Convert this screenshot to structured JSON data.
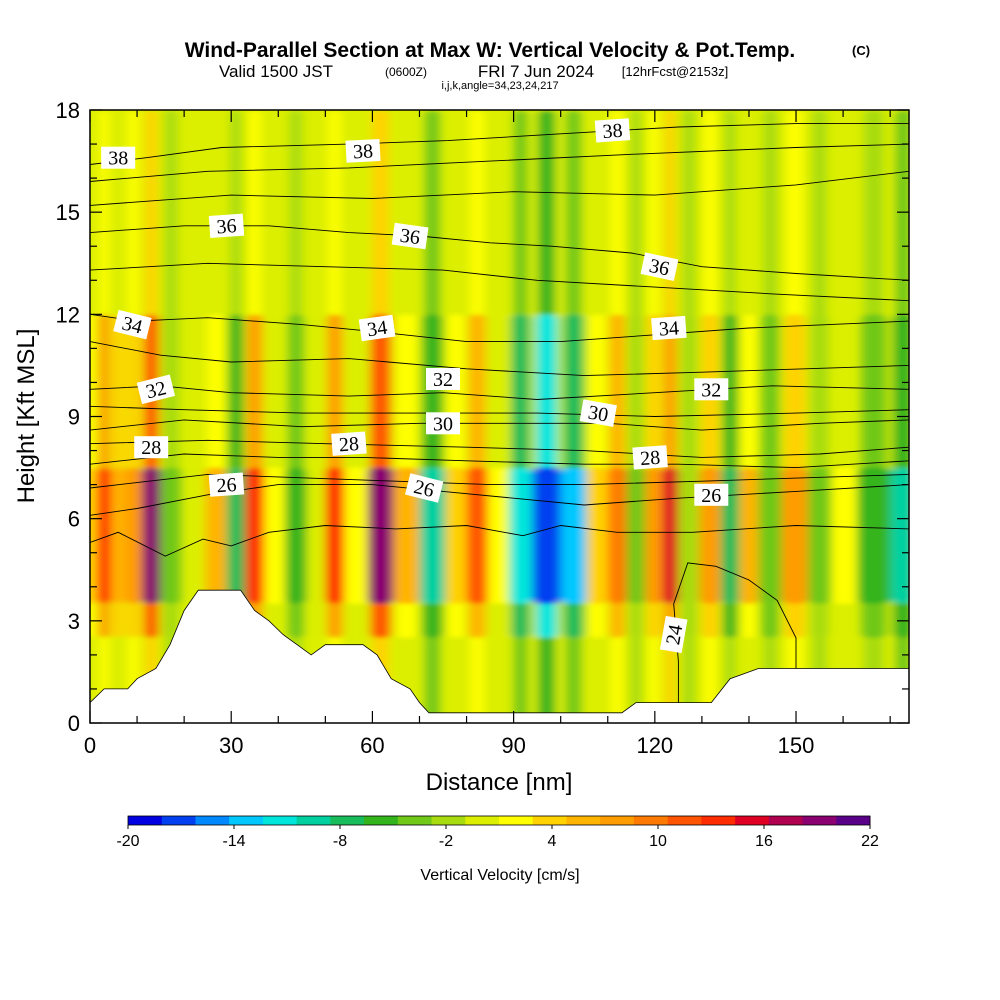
{
  "title": {
    "main": "Wind-Parallel Section at Max W: Vertical Velocity & Pot.Temp.",
    "main_mark": "(C)",
    "valid_lead": "Valid 1500 JST",
    "valid_utc": "(0600Z)",
    "valid_date": "FRI 7 Jun 2024",
    "fcst": "[12hrFcst@2153z]",
    "indices": "i,j,k,angle=34,23,24,217"
  },
  "chart_data": {
    "type": "heatmap",
    "xlabel": "Distance [nm]",
    "ylabel": "Height [Kft MSL]",
    "xlim": [
      0,
      174
    ],
    "ylim": [
      0,
      18
    ],
    "x_ticks": [
      0,
      30,
      60,
      90,
      120,
      150
    ],
    "y_ticks": [
      0,
      3,
      6,
      9,
      12,
      15,
      18
    ],
    "x_minor_step": 10,
    "y_minor_step": 1,
    "colorbar": {
      "label": "Vertical Velocity [cm/s]",
      "ticks": [
        -20,
        -14,
        -8,
        -2,
        4,
        10,
        16,
        22
      ],
      "levels": [
        -20,
        -18,
        -16,
        -14,
        -12,
        -10,
        -8,
        -6,
        -4,
        -2,
        0,
        2,
        4,
        6,
        8,
        10,
        12,
        14,
        16,
        18,
        20,
        22
      ],
      "colors": [
        "#0000e0",
        "#0040f0",
        "#0088ff",
        "#00c8ff",
        "#00e6dc",
        "#00d0a0",
        "#18bc5a",
        "#34b41c",
        "#70c818",
        "#a8dc10",
        "#dcef00",
        "#ffff00",
        "#ffd200",
        "#ffb400",
        "#ff9c00",
        "#ff7a00",
        "#ff5400",
        "#ff2c00",
        "#e00024",
        "#b00050",
        "#8a0070",
        "#5a0088"
      ]
    },
    "vertical_velocity_columns": [
      {
        "x": 0,
        "v": 5
      },
      {
        "x": 3,
        "v": 14
      },
      {
        "x": 6,
        "v": 7
      },
      {
        "x": 9,
        "v": 8
      },
      {
        "x": 13,
        "v": 20
      },
      {
        "x": 17,
        "v": -3
      },
      {
        "x": 22,
        "v": 0
      },
      {
        "x": 27,
        "v": 6
      },
      {
        "x": 31,
        "v": -8
      },
      {
        "x": 35,
        "v": 15
      },
      {
        "x": 39,
        "v": 3
      },
      {
        "x": 44,
        "v": -5
      },
      {
        "x": 48,
        "v": 0
      },
      {
        "x": 52,
        "v": 14
      },
      {
        "x": 56,
        "v": 3
      },
      {
        "x": 62,
        "v": 20
      },
      {
        "x": 67,
        "v": 6
      },
      {
        "x": 73,
        "v": -9
      },
      {
        "x": 78,
        "v": 5
      },
      {
        "x": 82,
        "v": 13
      },
      {
        "x": 87,
        "v": 2
      },
      {
        "x": 91,
        "v": -11
      },
      {
        "x": 97,
        "v": -18
      },
      {
        "x": 103,
        "v": -13
      },
      {
        "x": 108,
        "v": 4
      },
      {
        "x": 112,
        "v": 10
      },
      {
        "x": 116,
        "v": -3
      },
      {
        "x": 120,
        "v": 9
      },
      {
        "x": 123,
        "v": 16
      },
      {
        "x": 127,
        "v": -2
      },
      {
        "x": 132,
        "v": 9
      },
      {
        "x": 136,
        "v": -7
      },
      {
        "x": 140,
        "v": 6
      },
      {
        "x": 144,
        "v": -4
      },
      {
        "x": 150,
        "v": 8
      },
      {
        "x": 155,
        "v": -3
      },
      {
        "x": 160,
        "v": 2
      },
      {
        "x": 166,
        "v": -6
      },
      {
        "x": 174,
        "v": -10
      }
    ],
    "terrain": [
      {
        "x": 0,
        "y": 0.6
      },
      {
        "x": 3,
        "y": 1.0
      },
      {
        "x": 8,
        "y": 1.0
      },
      {
        "x": 10,
        "y": 1.3
      },
      {
        "x": 14,
        "y": 1.6
      },
      {
        "x": 17,
        "y": 2.3
      },
      {
        "x": 20,
        "y": 3.3
      },
      {
        "x": 23,
        "y": 3.9
      },
      {
        "x": 32,
        "y": 3.9
      },
      {
        "x": 35,
        "y": 3.3
      },
      {
        "x": 38,
        "y": 3.0
      },
      {
        "x": 41,
        "y": 2.6
      },
      {
        "x": 44,
        "y": 2.3
      },
      {
        "x": 47,
        "y": 2.0
      },
      {
        "x": 50,
        "y": 2.3
      },
      {
        "x": 58,
        "y": 2.3
      },
      {
        "x": 61,
        "y": 2.0
      },
      {
        "x": 64,
        "y": 1.3
      },
      {
        "x": 68,
        "y": 1.0
      },
      {
        "x": 70,
        "y": 0.6
      },
      {
        "x": 72,
        "y": 0.3
      },
      {
        "x": 88,
        "y": 0.3
      },
      {
        "x": 91,
        "y": 0.3
      },
      {
        "x": 113,
        "y": 0.3
      },
      {
        "x": 116,
        "y": 0.6
      },
      {
        "x": 132,
        "y": 0.6
      },
      {
        "x": 136,
        "y": 1.3
      },
      {
        "x": 142,
        "y": 1.6
      },
      {
        "x": 150,
        "y": 1.6
      },
      {
        "x": 174,
        "y": 1.6
      }
    ],
    "pot_temp_contours": [
      {
        "value": 38,
        "label": "38",
        "pts": [
          [
            0,
            16.4
          ],
          [
            12,
            16.6
          ],
          [
            28,
            16.9
          ],
          [
            55,
            17.0
          ],
          [
            76,
            17.1
          ],
          [
            100,
            17.3
          ],
          [
            125,
            17.5
          ],
          [
            150,
            17.6
          ],
          [
            174,
            17.6
          ]
        ],
        "labels": [
          {
            "x": 6,
            "y": 16.6,
            "rot": 0
          },
          {
            "x": 58,
            "y": 16.8,
            "rot": -3
          },
          {
            "x": 111,
            "y": 17.4,
            "rot": -4
          }
        ]
      },
      {
        "value": 37,
        "label": "",
        "pts": [
          [
            0,
            15.9
          ],
          [
            25,
            16.2
          ],
          [
            55,
            16.3
          ],
          [
            85,
            16.5
          ],
          [
            115,
            16.7
          ],
          [
            150,
            16.9
          ],
          [
            174,
            17.0
          ]
        ],
        "labels": []
      },
      {
        "value": 36.5,
        "label": "",
        "pts": [
          [
            0,
            15.2
          ],
          [
            30,
            15.5
          ],
          [
            60,
            15.4
          ],
          [
            90,
            15.6
          ],
          [
            120,
            15.5
          ],
          [
            150,
            15.8
          ],
          [
            174,
            16.2
          ]
        ],
        "labels": []
      },
      {
        "value": 36,
        "label": "36",
        "pts": [
          [
            0,
            14.4
          ],
          [
            20,
            14.6
          ],
          [
            38,
            14.6
          ],
          [
            55,
            14.4
          ],
          [
            70,
            14.3
          ],
          [
            85,
            14.1
          ],
          [
            98,
            14.0
          ],
          [
            115,
            13.8
          ],
          [
            130,
            13.4
          ],
          [
            150,
            13.2
          ],
          [
            174,
            13.0
          ]
        ],
        "labels": [
          {
            "x": 29,
            "y": 14.6,
            "rot": -4
          },
          {
            "x": 68,
            "y": 14.3,
            "rot": 8
          },
          {
            "x": 121,
            "y": 13.4,
            "rot": 12
          }
        ]
      },
      {
        "value": 35,
        "label": "",
        "pts": [
          [
            0,
            13.3
          ],
          [
            25,
            13.5
          ],
          [
            50,
            13.4
          ],
          [
            75,
            13.3
          ],
          [
            95,
            13.0
          ],
          [
            120,
            12.8
          ],
          [
            145,
            12.6
          ],
          [
            174,
            12.4
          ]
        ],
        "labels": []
      },
      {
        "value": 34,
        "label": "34",
        "pts": [
          [
            0,
            12.0
          ],
          [
            10,
            11.8
          ],
          [
            25,
            11.9
          ],
          [
            45,
            11.7
          ],
          [
            60,
            11.5
          ],
          [
            80,
            11.2
          ],
          [
            100,
            11.2
          ],
          [
            120,
            11.4
          ],
          [
            140,
            11.6
          ],
          [
            174,
            11.8
          ]
        ],
        "labels": [
          {
            "x": 9,
            "y": 11.7,
            "rot": 14
          },
          {
            "x": 61,
            "y": 11.6,
            "rot": -8
          },
          {
            "x": 123,
            "y": 11.6,
            "rot": -4
          }
        ]
      },
      {
        "value": 33,
        "label": "",
        "pts": [
          [
            0,
            11.2
          ],
          [
            15,
            10.8
          ],
          [
            30,
            10.6
          ],
          [
            55,
            10.7
          ],
          [
            80,
            10.4
          ],
          [
            105,
            10.2
          ],
          [
            130,
            10.3
          ],
          [
            174,
            10.5
          ]
        ],
        "labels": []
      },
      {
        "value": 32,
        "label": "32",
        "pts": [
          [
            0,
            9.8
          ],
          [
            15,
            9.9
          ],
          [
            30,
            9.7
          ],
          [
            55,
            9.6
          ],
          [
            75,
            9.7
          ],
          [
            95,
            9.5
          ],
          [
            120,
            9.7
          ],
          [
            145,
            9.9
          ],
          [
            174,
            9.8
          ]
        ],
        "labels": [
          {
            "x": 14,
            "y": 9.8,
            "rot": -14
          },
          {
            "x": 75,
            "y": 10.1,
            "rot": 0
          },
          {
            "x": 132,
            "y": 9.8,
            "rot": 0
          }
        ]
      },
      {
        "value": 31,
        "label": "",
        "pts": [
          [
            0,
            9.3
          ],
          [
            20,
            9.2
          ],
          [
            45,
            9.1
          ],
          [
            70,
            9.1
          ],
          [
            95,
            9.1
          ],
          [
            120,
            9.0
          ],
          [
            150,
            9.1
          ],
          [
            174,
            9.2
          ]
        ],
        "labels": []
      },
      {
        "value": 30,
        "label": "30",
        "pts": [
          [
            0,
            8.6
          ],
          [
            20,
            8.9
          ],
          [
            45,
            8.7
          ],
          [
            70,
            8.8
          ],
          [
            95,
            8.8
          ],
          [
            110,
            8.8
          ],
          [
            130,
            8.6
          ],
          [
            155,
            8.8
          ],
          [
            174,
            8.9
          ]
        ],
        "labels": [
          {
            "x": 75,
            "y": 8.8,
            "rot": 0
          },
          {
            "x": 108,
            "y": 9.1,
            "rot": 10
          }
        ]
      },
      {
        "value": 29,
        "label": "",
        "pts": [
          [
            0,
            8.2
          ],
          [
            25,
            8.3
          ],
          [
            50,
            8.2
          ],
          [
            80,
            8.1
          ],
          [
            105,
            8.0
          ],
          [
            130,
            7.8
          ],
          [
            155,
            7.9
          ],
          [
            174,
            8.1
          ]
        ],
        "labels": []
      },
      {
        "value": 28,
        "label": "28",
        "pts": [
          [
            0,
            7.6
          ],
          [
            20,
            7.9
          ],
          [
            40,
            7.8
          ],
          [
            58,
            7.8
          ],
          [
            80,
            7.7
          ],
          [
            105,
            7.6
          ],
          [
            125,
            7.6
          ],
          [
            150,
            7.5
          ],
          [
            174,
            7.7
          ]
        ],
        "labels": [
          {
            "x": 13,
            "y": 8.1,
            "rot": 0
          },
          {
            "x": 55,
            "y": 8.2,
            "rot": -4
          },
          {
            "x": 119,
            "y": 7.8,
            "rot": -4
          }
        ]
      },
      {
        "value": 27,
        "label": "",
        "pts": [
          [
            0,
            6.9
          ],
          [
            25,
            7.3
          ],
          [
            45,
            7.2
          ],
          [
            65,
            7.1
          ],
          [
            85,
            7.0
          ],
          [
            105,
            7.0
          ],
          [
            130,
            7.1
          ],
          [
            174,
            7.3
          ]
        ],
        "labels": []
      },
      {
        "value": 26,
        "label": "26",
        "pts": [
          [
            0,
            6.1
          ],
          [
            10,
            6.3
          ],
          [
            25,
            6.7
          ],
          [
            40,
            7.0
          ],
          [
            60,
            7.0
          ],
          [
            75,
            6.8
          ],
          [
            90,
            6.6
          ],
          [
            105,
            6.4
          ],
          [
            125,
            6.6
          ],
          [
            150,
            6.8
          ],
          [
            174,
            7.0
          ]
        ],
        "labels": [
          {
            "x": 29,
            "y": 7.0,
            "rot": -4
          },
          {
            "x": 71,
            "y": 6.9,
            "rot": 14
          },
          {
            "x": 132,
            "y": 6.7,
            "rot": 0
          }
        ]
      },
      {
        "value": 25,
        "label": "",
        "pts": [
          [
            0,
            5.3
          ],
          [
            6,
            5.6
          ],
          [
            16,
            4.9
          ],
          [
            24,
            5.4
          ],
          [
            30,
            5.2
          ],
          [
            38,
            5.6
          ],
          [
            50,
            5.8
          ],
          [
            65,
            5.7
          ],
          [
            80,
            5.8
          ],
          [
            92,
            5.5
          ],
          [
            100,
            5.8
          ],
          [
            112,
            5.6
          ],
          [
            128,
            5.6
          ],
          [
            150,
            5.8
          ],
          [
            174,
            5.7
          ]
        ],
        "labels": []
      },
      {
        "value": 24,
        "label": "24",
        "pts": [
          [
            125,
            0.6
          ],
          [
            125,
            1.8
          ],
          [
            124,
            3.5
          ],
          [
            127,
            4.7
          ],
          [
            133,
            4.6
          ],
          [
            140,
            4.2
          ],
          [
            146,
            3.6
          ],
          [
            150,
            2.5
          ],
          [
            150,
            1.6
          ]
        ],
        "labels": [
          {
            "x": 124,
            "y": 2.6,
            "rot": -80
          }
        ]
      }
    ]
  }
}
